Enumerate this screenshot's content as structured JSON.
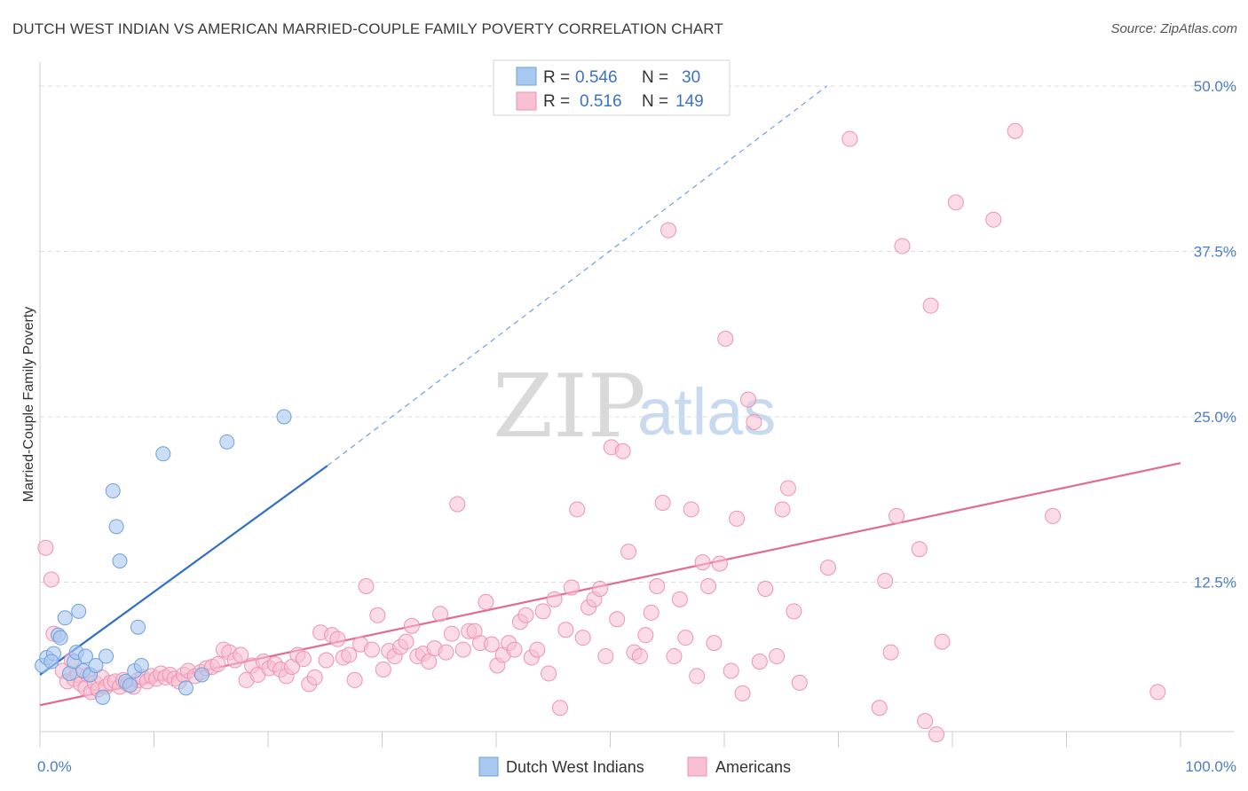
{
  "title": "DUTCH WEST INDIAN VS AMERICAN MARRIED-COUPLE FAMILY POVERTY CORRELATION CHART",
  "source": "Source: ZipAtlas.com",
  "watermark": {
    "zip": "ZIP",
    "atlas": "atlas"
  },
  "colors": {
    "blue_fill": "#a9c8f0",
    "blue_stroke": "#6f9fdc",
    "blue_line": "#2e6fcc",
    "pink_fill": "#f7bfd1",
    "pink_stroke": "#ee93b0",
    "pink_line": "#e26a96",
    "tick": "#4a7cc7",
    "grid": "#dddddd"
  },
  "legend": {
    "rows": [
      {
        "r_label": "R =",
        "r_value": "0.546",
        "n_label": "N =",
        "n_value": "30",
        "series": "blue"
      },
      {
        "r_label": "R =",
        "r_value": "0.516",
        "n_label": "N =",
        "n_value": "149",
        "series": "pink"
      }
    ]
  },
  "chart_data": {
    "type": "scatter",
    "title": "DUTCH WEST INDIAN VS AMERICAN MARRIED-COUPLE FAMILY POVERTY CORRELATION CHART",
    "xlabel": "",
    "ylabel": "Married-Couple Family Poverty",
    "xlim": [
      0,
      100
    ],
    "ylim": [
      0,
      52
    ],
    "x_tick_labels": [
      "0.0%",
      "100.0%"
    ],
    "y_ticks": [
      12.5,
      25.0,
      37.5,
      50.0
    ],
    "y_tick_labels": [
      "12.5%",
      "25.0%",
      "37.5%",
      "50.0%"
    ],
    "grid": true,
    "legend_position": "top-center",
    "series": [
      {
        "name": "Dutch West Indians",
        "color": "#a9c8f0",
        "trend": {
          "x": [
            0,
            25.2
          ],
          "y": [
            5.5,
            21.3
          ],
          "extended_to": [
            69,
            50.0
          ]
        },
        "points": [
          [
            0.2,
            6.2
          ],
          [
            0.6,
            6.8
          ],
          [
            1.2,
            7.1
          ],
          [
            1.6,
            8.5
          ],
          [
            1.8,
            8.3
          ],
          [
            2.2,
            9.8
          ],
          [
            2.6,
            5.6
          ],
          [
            3.0,
            6.5
          ],
          [
            3.2,
            7.2
          ],
          [
            3.4,
            10.3
          ],
          [
            3.8,
            5.8
          ],
          [
            4.0,
            6.9
          ],
          [
            4.4,
            5.5
          ],
          [
            4.9,
            6.2
          ],
          [
            5.5,
            3.8
          ],
          [
            5.8,
            6.9
          ],
          [
            6.4,
            19.4
          ],
          [
            6.7,
            16.7
          ],
          [
            7.0,
            14.1
          ],
          [
            7.5,
            5.0
          ],
          [
            7.9,
            4.7
          ],
          [
            8.3,
            5.8
          ],
          [
            8.6,
            9.1
          ],
          [
            8.9,
            6.2
          ],
          [
            10.8,
            22.2
          ],
          [
            12.8,
            4.5
          ],
          [
            14.2,
            5.5
          ],
          [
            16.4,
            23.1
          ],
          [
            21.4,
            25.0
          ],
          [
            1.0,
            6.5
          ]
        ]
      },
      {
        "name": "Americans",
        "color": "#f7bfd1",
        "trend": {
          "x": [
            0,
            100
          ],
          "y": [
            3.2,
            21.5
          ]
        },
        "points": [
          [
            0.5,
            15.1
          ],
          [
            1.0,
            12.7
          ],
          [
            1.2,
            8.6
          ],
          [
            2.0,
            5.8
          ],
          [
            2.4,
            5.0
          ],
          [
            2.8,
            6.6
          ],
          [
            3.0,
            5.2
          ],
          [
            3.3,
            5.5
          ],
          [
            3.6,
            4.8
          ],
          [
            4.0,
            4.5
          ],
          [
            4.2,
            5.5
          ],
          [
            4.5,
            4.2
          ],
          [
            4.8,
            4.9
          ],
          [
            5.1,
            4.4
          ],
          [
            5.4,
            5.3
          ],
          [
            5.8,
            4.6
          ],
          [
            6.2,
            4.9
          ],
          [
            6.6,
            5.0
          ],
          [
            7.0,
            4.6
          ],
          [
            7.3,
            5.1
          ],
          [
            7.7,
            4.8
          ],
          [
            8.2,
            4.6
          ],
          [
            8.6,
            5.1
          ],
          [
            9.0,
            5.3
          ],
          [
            9.4,
            5.0
          ],
          [
            9.8,
            5.4
          ],
          [
            10.2,
            5.2
          ],
          [
            10.6,
            5.6
          ],
          [
            11.0,
            5.3
          ],
          [
            11.4,
            5.5
          ],
          [
            11.8,
            5.2
          ],
          [
            12.2,
            5.0
          ],
          [
            12.6,
            5.5
          ],
          [
            13.0,
            5.8
          ],
          [
            13.6,
            5.4
          ],
          [
            14.1,
            5.7
          ],
          [
            14.6,
            6.0
          ],
          [
            15.1,
            6.1
          ],
          [
            15.6,
            6.3
          ],
          [
            16.1,
            7.4
          ],
          [
            16.6,
            7.2
          ],
          [
            17.1,
            6.6
          ],
          [
            17.6,
            7.0
          ],
          [
            18.1,
            5.1
          ],
          [
            18.6,
            6.2
          ],
          [
            19.1,
            5.5
          ],
          [
            19.6,
            6.5
          ],
          [
            20.1,
            6.0
          ],
          [
            20.6,
            6.3
          ],
          [
            21.1,
            5.9
          ],
          [
            21.6,
            5.4
          ],
          [
            22.1,
            6.1
          ],
          [
            22.6,
            7.0
          ],
          [
            23.1,
            6.7
          ],
          [
            23.6,
            4.8
          ],
          [
            24.1,
            5.3
          ],
          [
            24.6,
            8.7
          ],
          [
            25.1,
            6.6
          ],
          [
            25.6,
            8.5
          ],
          [
            26.1,
            8.2
          ],
          [
            26.6,
            6.8
          ],
          [
            27.1,
            7.0
          ],
          [
            27.6,
            5.1
          ],
          [
            28.1,
            7.8
          ],
          [
            28.6,
            12.2
          ],
          [
            29.1,
            7.4
          ],
          [
            29.6,
            10.0
          ],
          [
            30.1,
            5.9
          ],
          [
            30.6,
            7.3
          ],
          [
            31.1,
            6.9
          ],
          [
            31.6,
            7.6
          ],
          [
            32.1,
            8.0
          ],
          [
            32.6,
            9.2
          ],
          [
            33.1,
            6.9
          ],
          [
            33.6,
            7.1
          ],
          [
            34.1,
            6.5
          ],
          [
            34.6,
            7.5
          ],
          [
            35.1,
            10.1
          ],
          [
            35.6,
            7.2
          ],
          [
            36.1,
            8.6
          ],
          [
            36.6,
            18.4
          ],
          [
            37.1,
            7.4
          ],
          [
            37.6,
            8.8
          ],
          [
            38.1,
            8.8
          ],
          [
            38.6,
            7.9
          ],
          [
            39.1,
            11.0
          ],
          [
            39.6,
            7.8
          ],
          [
            40.1,
            6.2
          ],
          [
            40.6,
            7.0
          ],
          [
            41.1,
            7.9
          ],
          [
            41.6,
            7.4
          ],
          [
            42.1,
            9.5
          ],
          [
            42.6,
            10.0
          ],
          [
            43.1,
            6.8
          ],
          [
            43.6,
            7.4
          ],
          [
            44.1,
            10.3
          ],
          [
            44.6,
            5.6
          ],
          [
            45.1,
            11.2
          ],
          [
            45.6,
            3.0
          ],
          [
            46.1,
            8.9
          ],
          [
            46.6,
            12.1
          ],
          [
            47.1,
            18.0
          ],
          [
            47.6,
            8.3
          ],
          [
            48.1,
            10.6
          ],
          [
            48.6,
            11.2
          ],
          [
            49.1,
            12.0
          ],
          [
            49.6,
            6.9
          ],
          [
            50.1,
            22.7
          ],
          [
            50.6,
            9.7
          ],
          [
            51.1,
            22.4
          ],
          [
            51.6,
            14.8
          ],
          [
            52.1,
            7.2
          ],
          [
            52.6,
            6.9
          ],
          [
            53.1,
            8.5
          ],
          [
            53.6,
            10.2
          ],
          [
            54.1,
            12.2
          ],
          [
            54.6,
            18.5
          ],
          [
            55.1,
            39.1
          ],
          [
            55.6,
            6.9
          ],
          [
            56.1,
            11.2
          ],
          [
            56.6,
            8.3
          ],
          [
            57.1,
            18.0
          ],
          [
            57.6,
            5.4
          ],
          [
            58.1,
            14.0
          ],
          [
            58.6,
            12.2
          ],
          [
            59.1,
            7.9
          ],
          [
            59.6,
            13.9
          ],
          [
            60.1,
            30.9
          ],
          [
            60.6,
            5.8
          ],
          [
            61.1,
            17.3
          ],
          [
            61.6,
            4.1
          ],
          [
            62.1,
            26.3
          ],
          [
            62.6,
            24.6
          ],
          [
            63.1,
            6.5
          ],
          [
            63.6,
            12.0
          ],
          [
            64.6,
            6.9
          ],
          [
            65.1,
            18.0
          ],
          [
            65.6,
            19.6
          ],
          [
            66.1,
            10.3
          ],
          [
            66.6,
            4.9
          ],
          [
            69.1,
            13.6
          ],
          [
            71.0,
            46.0
          ],
          [
            73.6,
            3.0
          ],
          [
            74.1,
            12.6
          ],
          [
            74.6,
            7.2
          ],
          [
            75.1,
            17.5
          ],
          [
            75.6,
            37.9
          ],
          [
            77.1,
            15.0
          ],
          [
            77.6,
            2.0
          ],
          [
            78.1,
            33.4
          ],
          [
            78.6,
            1.0
          ],
          [
            79.1,
            8.0
          ],
          [
            80.3,
            41.2
          ],
          [
            83.6,
            39.9
          ],
          [
            85.5,
            46.6
          ],
          [
            88.8,
            17.5
          ],
          [
            98.0,
            4.2
          ]
        ]
      }
    ]
  },
  "bottom_legend": [
    {
      "label": "Dutch West Indians",
      "series": "blue"
    },
    {
      "label": "Americans",
      "series": "pink"
    }
  ]
}
